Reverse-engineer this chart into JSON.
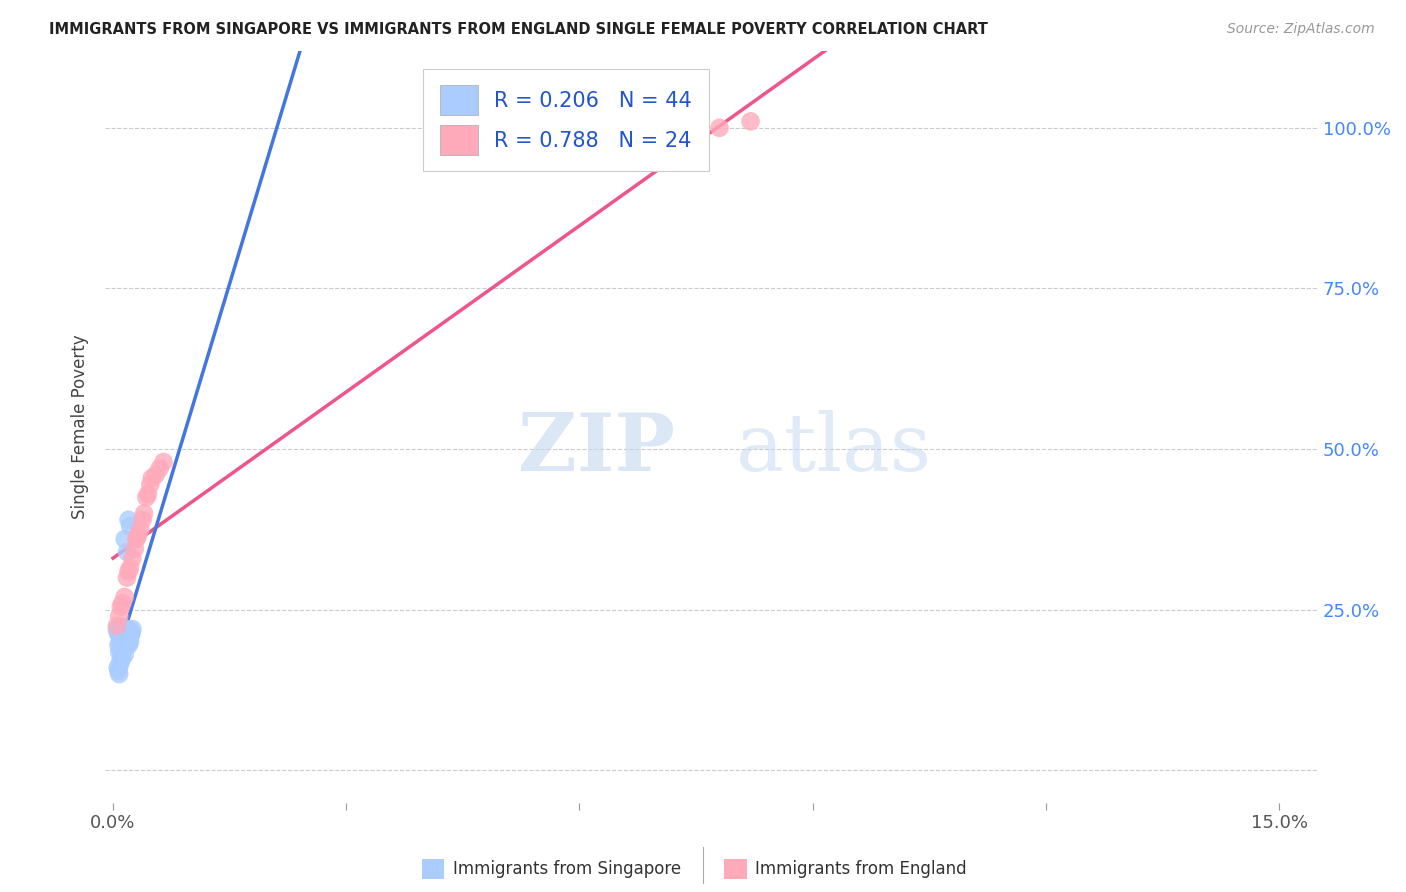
{
  "title": "IMMIGRANTS FROM SINGAPORE VS IMMIGRANTS FROM ENGLAND SINGLE FEMALE POVERTY CORRELATION CHART",
  "source": "Source: ZipAtlas.com",
  "ylabel": "Single Female Poverty",
  "y_ticks": [
    0.0,
    0.25,
    0.5,
    0.75,
    1.0
  ],
  "y_tick_labels": [
    "",
    "25.0%",
    "50.0%",
    "75.0%",
    "100.0%"
  ],
  "watermark_zip": "ZIP",
  "watermark_atlas": "atlas",
  "legend_label1": "Immigrants from Singapore",
  "legend_label2": "Immigrants from England",
  "color_singapore": "#aaccff",
  "color_england": "#ffaabb",
  "color_trend_singapore_solid": "#4477dd",
  "color_trend_england": "#ee5588",
  "color_trend_dashed": "#99bbdd",
  "background_color": "#ffffff",
  "singapore_x": [
    0.0005,
    0.0006,
    0.0007,
    0.0008,
    0.0008,
    0.0009,
    0.0009,
    0.001,
    0.001,
    0.001,
    0.0011,
    0.0011,
    0.0012,
    0.0012,
    0.0013,
    0.0013,
    0.0014,
    0.0014,
    0.0015,
    0.0015,
    0.0015,
    0.0016,
    0.0016,
    0.0017,
    0.0018,
    0.0018,
    0.0019,
    0.002,
    0.002,
    0.0021,
    0.0022,
    0.0023,
    0.0024,
    0.0025,
    0.0006,
    0.0007,
    0.0008,
    0.0009,
    0.001,
    0.0012,
    0.0015,
    0.0018,
    0.002,
    0.0022
  ],
  "singapore_y": [
    0.22,
    0.215,
    0.195,
    0.21,
    0.185,
    0.2,
    0.225,
    0.21,
    0.195,
    0.175,
    0.19,
    0.215,
    0.185,
    0.2,
    0.195,
    0.21,
    0.19,
    0.205,
    0.215,
    0.195,
    0.18,
    0.2,
    0.22,
    0.205,
    0.195,
    0.21,
    0.22,
    0.195,
    0.215,
    0.205,
    0.2,
    0.21,
    0.215,
    0.22,
    0.16,
    0.155,
    0.15,
    0.165,
    0.17,
    0.175,
    0.36,
    0.34,
    0.39,
    0.38
  ],
  "england_x": [
    0.0005,
    0.0008,
    0.001,
    0.0012,
    0.0015,
    0.0018,
    0.002,
    0.0022,
    0.0025,
    0.0028,
    0.003,
    0.0032,
    0.0035,
    0.0038,
    0.004,
    0.0043,
    0.0045,
    0.0048,
    0.005,
    0.0055,
    0.006,
    0.0065,
    0.078,
    0.082
  ],
  "england_y": [
    0.225,
    0.24,
    0.255,
    0.26,
    0.27,
    0.3,
    0.31,
    0.315,
    0.33,
    0.345,
    0.36,
    0.365,
    0.375,
    0.39,
    0.4,
    0.425,
    0.43,
    0.445,
    0.455,
    0.46,
    0.47,
    0.48,
    1.0,
    1.01
  ],
  "xlim": [
    -0.001,
    0.155
  ],
  "ylim": [
    -0.05,
    1.12
  ],
  "sg_trend_x_start": 0.0,
  "sg_trend_x_solid_end": 0.022,
  "sg_trend_slope": 14.0,
  "sg_trend_intercept": 0.195,
  "en_trend_slope": 12.5,
  "en_trend_intercept": 0.22
}
